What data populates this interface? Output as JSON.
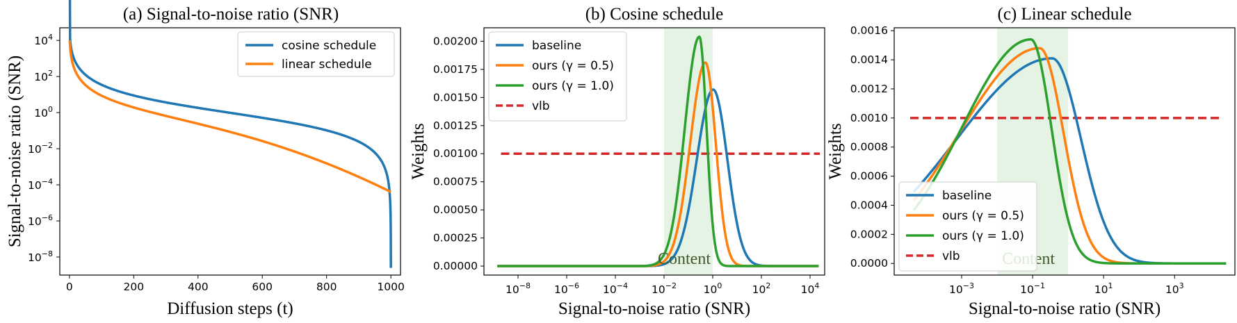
{
  "chart_data": [
    {
      "type": "line",
      "title": "(a) Signal-to-noise ratio (SNR)",
      "xlabel": "Diffusion steps (t)",
      "ylabel": "Signal-to-noise ratio (SNR)",
      "xlim": [
        -30,
        1030
      ],
      "ylim_log10": [
        -9,
        4.7
      ],
      "yscale": "log",
      "xticks": [
        0,
        200,
        400,
        600,
        800,
        1000
      ],
      "xtick_labels": [
        "0",
        "200",
        "400",
        "600",
        "800",
        "1000"
      ],
      "yticks_exp": [
        4,
        2,
        0,
        -2,
        -4,
        -6,
        -8
      ],
      "ytick_labels": [
        [
          "10",
          "4"
        ],
        [
          "10",
          "2"
        ],
        [
          "10",
          "0"
        ],
        [
          "10",
          "−2"
        ],
        [
          "10",
          "−4"
        ],
        [
          "10",
          "−6"
        ],
        [
          "10",
          "−8"
        ]
      ],
      "legend_position": "top-right",
      "series": [
        {
          "name": "cosine schedule",
          "color": "#1f77b4"
        },
        {
          "name": "linear schedule",
          "color": "#ff7f0e"
        }
      ]
    },
    {
      "type": "line",
      "title": "(b) Cosine schedule",
      "xlabel": "Signal-to-noise ratio (SNR)",
      "ylabel": "Weights",
      "xscale": "log",
      "xlim_log10": [
        -9.4,
        4.6
      ],
      "ylim": [
        -8e-05,
        0.00212
      ],
      "xticks_exp": [
        -8,
        -6,
        -4,
        -2,
        0,
        2,
        4
      ],
      "xtick_labels": [
        [
          "10",
          "−8"
        ],
        [
          "10",
          "−6"
        ],
        [
          "10",
          "−4"
        ],
        [
          "10",
          "−2"
        ],
        [
          "10",
          "0"
        ],
        [
          "10",
          "2"
        ],
        [
          "10",
          "4"
        ]
      ],
      "yticks": [
        0,
        0.00025,
        0.0005,
        0.00075,
        0.001,
        0.00125,
        0.0015,
        0.00175,
        0.002
      ],
      "ytick_labels": [
        "0.00000",
        "0.00025",
        "0.00050",
        "0.00075",
        "0.00100",
        "0.00125",
        "0.00150",
        "0.00175",
        "0.00200"
      ],
      "content_region_log10": [
        -2,
        0
      ],
      "content_label": "Content",
      "legend_position": "top-left",
      "series": [
        {
          "name": "baseline",
          "color": "#1f77b4",
          "dash": false,
          "peak_log10": 0.02,
          "peak": 0.00157,
          "width_left": 0.95,
          "width_right": 0.82,
          "shape": 2.0
        },
        {
          "name": "ours (γ = 0.5)",
          "color": "#ff7f0e",
          "dash": false,
          "peak_log10": -0.3,
          "peak": 0.00181,
          "width_left": 0.88,
          "width_right": 0.6,
          "shape": 2.0
        },
        {
          "name": "ours (γ = 1.0)",
          "color": "#2ca02c",
          "dash": false,
          "peak_log10": -0.55,
          "peak": 0.00204,
          "width_left": 0.84,
          "width_right": 0.42,
          "shape": 2.0
        },
        {
          "name": "vlb",
          "color": "#d62728",
          "dash": true,
          "value": 0.001,
          "range_log10": [
            -8.7,
            4.4
          ]
        }
      ]
    },
    {
      "type": "line",
      "title": "(c) Linear schedule",
      "xlabel": "Signal-to-noise ratio (SNR)",
      "ylabel": "Weights",
      "xscale": "log",
      "xlim_log10": [
        -4.9,
        4.7
      ],
      "ylim": [
        -8e-05,
        0.00162
      ],
      "xticks_exp": [
        -3,
        -1,
        1,
        3
      ],
      "xtick_labels": [
        [
          "10",
          "−3"
        ],
        [
          "10",
          "−1"
        ],
        [
          "10",
          "1"
        ],
        [
          "10",
          "3"
        ]
      ],
      "yticks": [
        0,
        0.0002,
        0.0004,
        0.0006,
        0.0008,
        0.001,
        0.0012,
        0.0014,
        0.0016
      ],
      "ytick_labels": [
        "0.0000",
        "0.0002",
        "0.0004",
        "0.0006",
        "0.0008",
        "0.0010",
        "0.0012",
        "0.0014",
        "0.0016"
      ],
      "content_region_log10": [
        -2,
        0
      ],
      "content_label": "Content",
      "legend_position": "bottom-left",
      "series": [
        {
          "name": "baseline",
          "color": "#1f77b4",
          "dash": false,
          "peak_log10": -0.45,
          "peak": 0.00141,
          "width_left": 3.8,
          "width_right": 1.15,
          "shape": 2.0
        },
        {
          "name": "ours (γ = 0.5)",
          "color": "#ff7f0e",
          "dash": false,
          "peak_log10": -0.8,
          "peak": 0.00148,
          "width_left": 3.2,
          "width_right": 0.95,
          "shape": 2.0
        },
        {
          "name": "ours (γ = 1.0)",
          "color": "#2ca02c",
          "dash": false,
          "peak_log10": -1.05,
          "peak": 0.00154,
          "width_left": 2.75,
          "width_right": 0.82,
          "shape": 2.0
        },
        {
          "name": "vlb",
          "color": "#d62728",
          "dash": true,
          "value": 0.001,
          "range_log10": [
            -4.45,
            4.25
          ]
        }
      ]
    }
  ]
}
